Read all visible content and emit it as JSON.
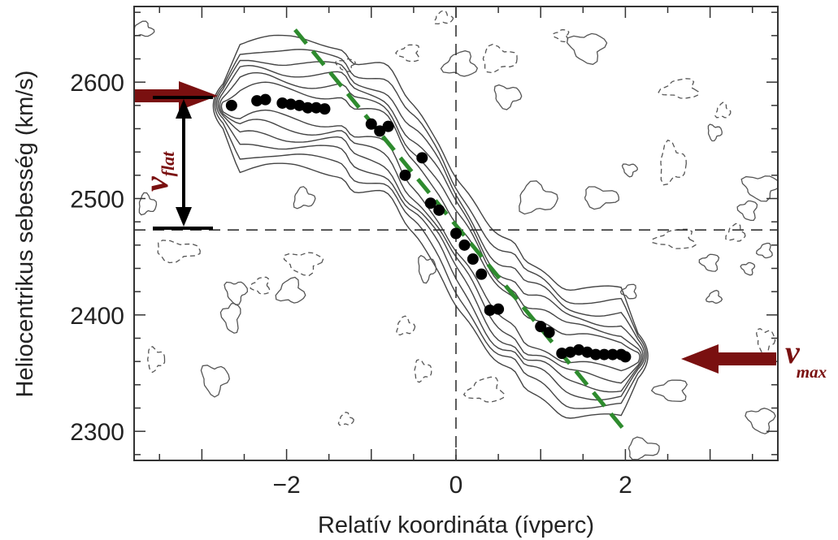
{
  "chart_data": {
    "type": "scatter",
    "title": "",
    "xlabel": "Relatív koordináta (ívperc)",
    "ylabel": "Heliocentrikus sebesség (km/s)",
    "xlim": [
      -3.8,
      3.8
    ],
    "ylim": [
      2275,
      2665
    ],
    "xticks": [
      -2,
      0,
      2
    ],
    "xtick_labels": [
      "−2",
      "0",
      "2"
    ],
    "yticks": [
      2300,
      2400,
      2500,
      2600
    ],
    "ytick_labels": [
      "2300",
      "2400",
      "2500",
      "2600"
    ],
    "grid": false,
    "center_lines": {
      "x": 0,
      "y": 2473
    },
    "rotation_curve_points": [
      {
        "x": -2.65,
        "y": 2580
      },
      {
        "x": -2.35,
        "y": 2584
      },
      {
        "x": -2.25,
        "y": 2585
      },
      {
        "x": -2.05,
        "y": 2582
      },
      {
        "x": -1.95,
        "y": 2581
      },
      {
        "x": -1.85,
        "y": 2580
      },
      {
        "x": -1.75,
        "y": 2578
      },
      {
        "x": -1.65,
        "y": 2578
      },
      {
        "x": -1.55,
        "y": 2577
      },
      {
        "x": -1.0,
        "y": 2564
      },
      {
        "x": -0.9,
        "y": 2558
      },
      {
        "x": -0.8,
        "y": 2562
      },
      {
        "x": -0.4,
        "y": 2535
      },
      {
        "x": -0.6,
        "y": 2520
      },
      {
        "x": -0.3,
        "y": 2496
      },
      {
        "x": -0.2,
        "y": 2490
      },
      {
        "x": 0.0,
        "y": 2470
      },
      {
        "x": 0.1,
        "y": 2460
      },
      {
        "x": 0.2,
        "y": 2448
      },
      {
        "x": 0.3,
        "y": 2435
      },
      {
        "x": 0.4,
        "y": 2404
      },
      {
        "x": 0.5,
        "y": 2405
      },
      {
        "x": 1.0,
        "y": 2390
      },
      {
        "x": 1.1,
        "y": 2385
      },
      {
        "x": 1.25,
        "y": 2367
      },
      {
        "x": 1.35,
        "y": 2368
      },
      {
        "x": 1.45,
        "y": 2370
      },
      {
        "x": 1.55,
        "y": 2368
      },
      {
        "x": 1.65,
        "y": 2366
      },
      {
        "x": 1.75,
        "y": 2366
      },
      {
        "x": 1.85,
        "y": 2366
      },
      {
        "x": 1.95,
        "y": 2366
      },
      {
        "x": 2.0,
        "y": 2364
      }
    ],
    "linear_fit_line": {
      "color": "#2e8b2e",
      "x": [
        -1.9,
        2.0
      ],
      "y": [
        2645,
        2300
      ]
    },
    "annotations": {
      "v_flat": {
        "symbol": "v",
        "subscript": "flat",
        "y_from": 2473,
        "y_to": 2584,
        "x_data": -3.2
      },
      "v_max": {
        "symbol": "v",
        "subscript": "max",
        "y": 2363
      }
    },
    "colors": {
      "points": "#000000",
      "fit": "#2e8b2e",
      "arrows": "#7a1010",
      "contours": "#333333"
    }
  }
}
